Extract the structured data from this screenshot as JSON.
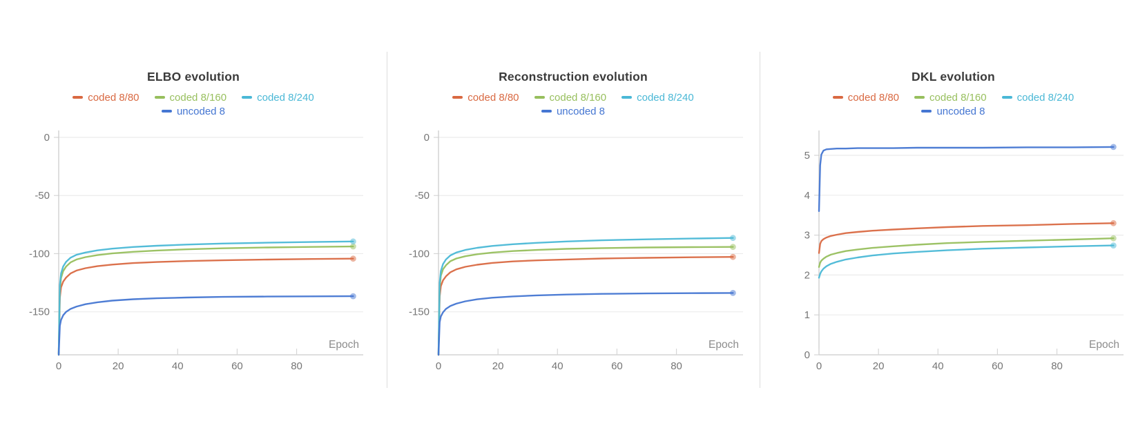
{
  "background_color": "#ffffff",
  "axis_style": {
    "axis_color": "#cccccc",
    "grid_color": "#ebebeb",
    "tick_mark_color": "#d6d6d6",
    "tick_text_color": "#757575",
    "axis_label_color": "#8c8c8c",
    "title_color": "#3b3b3b"
  },
  "chart_data": [
    {
      "type": "line",
      "title": "ELBO evolution",
      "xlabel": "Epoch",
      "ylabel": "",
      "xlim": [
        0,
        101
      ],
      "ylim": [
        -187,
        0
      ],
      "x_ticks": [
        0,
        20,
        40,
        60,
        80
      ],
      "y_ticks": [
        0,
        -50,
        -100,
        -150
      ],
      "grid": true,
      "legend_position": "top",
      "end_marker": true,
      "series": [
        {
          "name": "coded 8/80",
          "color": "#d96942",
          "points": [
            [
              0,
              -186
            ],
            [
              0.4,
              -138
            ],
            [
              0.8,
              -129
            ],
            [
              1.5,
              -124
            ],
            [
              2.5,
              -120.5
            ],
            [
              4,
              -117
            ],
            [
              6,
              -114.5
            ],
            [
              9,
              -112.5
            ],
            [
              13,
              -110.8
            ],
            [
              18,
              -109.4
            ],
            [
              25,
              -108.1
            ],
            [
              33,
              -107.2
            ],
            [
              43,
              -106.4
            ],
            [
              55,
              -105.7
            ],
            [
              70,
              -105.1
            ],
            [
              85,
              -104.6
            ],
            [
              99,
              -104.3
            ]
          ]
        },
        {
          "name": "coded 8/160",
          "color": "#97bf5d",
          "points": [
            [
              0,
              -187
            ],
            [
              0.4,
              -131
            ],
            [
              0.8,
              -121
            ],
            [
              1.5,
              -115
            ],
            [
              2.5,
              -111
            ],
            [
              4,
              -107.5
            ],
            [
              6,
              -105
            ],
            [
              9,
              -103
            ],
            [
              13,
              -101.3
            ],
            [
              18,
              -99.8
            ],
            [
              25,
              -98.4
            ],
            [
              33,
              -97.3
            ],
            [
              43,
              -96.3
            ],
            [
              55,
              -95.4
            ],
            [
              70,
              -94.7
            ],
            [
              85,
              -94.2
            ],
            [
              99,
              -93.8
            ]
          ]
        },
        {
          "name": "coded 8/240",
          "color": "#4ab8d6",
          "points": [
            [
              0,
              -186
            ],
            [
              0.4,
              -127
            ],
            [
              0.8,
              -117
            ],
            [
              1.5,
              -111
            ],
            [
              2.5,
              -107
            ],
            [
              4,
              -103.5
            ],
            [
              6,
              -101
            ],
            [
              9,
              -99
            ],
            [
              13,
              -97.2
            ],
            [
              18,
              -95.7
            ],
            [
              25,
              -94.3
            ],
            [
              33,
              -93.2
            ],
            [
              43,
              -92.2
            ],
            [
              55,
              -91.3
            ],
            [
              70,
              -90.6
            ],
            [
              85,
              -90
            ],
            [
              99,
              -89.5
            ]
          ]
        },
        {
          "name": "uncoded 8",
          "color": "#4576d2",
          "points": [
            [
              0,
              -188
            ],
            [
              0.4,
              -162
            ],
            [
              0.8,
              -157
            ],
            [
              1.5,
              -153
            ],
            [
              2.5,
              -150
            ],
            [
              4,
              -147.5
            ],
            [
              6,
              -145.5
            ],
            [
              9,
              -143.5
            ],
            [
              13,
              -141.8
            ],
            [
              18,
              -140.4
            ],
            [
              25,
              -139.2
            ],
            [
              33,
              -138.4
            ],
            [
              43,
              -137.7
            ],
            [
              55,
              -137.2
            ],
            [
              70,
              -136.9
            ],
            [
              85,
              -136.7
            ],
            [
              99,
              -136.6
            ]
          ]
        }
      ]
    },
    {
      "type": "line",
      "title": "Reconstruction evolution",
      "xlabel": "Epoch",
      "ylabel": "",
      "xlim": [
        0,
        101
      ],
      "ylim": [
        -187,
        0
      ],
      "x_ticks": [
        0,
        20,
        40,
        60,
        80
      ],
      "y_ticks": [
        0,
        -50,
        -100,
        -150
      ],
      "grid": true,
      "legend_position": "top",
      "end_marker": true,
      "series": [
        {
          "name": "coded 8/80",
          "color": "#d96942",
          "points": [
            [
              0,
              -187
            ],
            [
              0.4,
              -137
            ],
            [
              0.8,
              -128
            ],
            [
              1.5,
              -123
            ],
            [
              2.5,
              -119.5
            ],
            [
              4,
              -116
            ],
            [
              6,
              -113.5
            ],
            [
              9,
              -111.3
            ],
            [
              13,
              -109.5
            ],
            [
              18,
              -108
            ],
            [
              25,
              -106.7
            ],
            [
              33,
              -105.8
            ],
            [
              43,
              -105
            ],
            [
              55,
              -104.2
            ],
            [
              70,
              -103.6
            ],
            [
              85,
              -103.1
            ],
            [
              99,
              -102.8
            ]
          ]
        },
        {
          "name": "coded 8/160",
          "color": "#97bf5d",
          "points": [
            [
              0,
              -187
            ],
            [
              0.4,
              -129
            ],
            [
              0.8,
              -119
            ],
            [
              1.5,
              -113.5
            ],
            [
              2.5,
              -110
            ],
            [
              4,
              -106.5
            ],
            [
              6,
              -104.2
            ],
            [
              9,
              -102.2
            ],
            [
              13,
              -100.5
            ],
            [
              18,
              -99.1
            ],
            [
              25,
              -97.8
            ],
            [
              33,
              -96.8
            ],
            [
              43,
              -95.9
            ],
            [
              55,
              -95.2
            ],
            [
              70,
              -94.7
            ],
            [
              85,
              -94.4
            ],
            [
              99,
              -94.2
            ]
          ]
        },
        {
          "name": "coded 8/240",
          "color": "#4ab8d6",
          "points": [
            [
              0,
              -186
            ],
            [
              0.4,
              -125
            ],
            [
              0.8,
              -115
            ],
            [
              1.5,
              -109
            ],
            [
              2.5,
              -105
            ],
            [
              4,
              -101.5
            ],
            [
              6,
              -99
            ],
            [
              9,
              -96.8
            ],
            [
              13,
              -95
            ],
            [
              18,
              -93.4
            ],
            [
              25,
              -91.9
            ],
            [
              33,
              -90.7
            ],
            [
              43,
              -89.5
            ],
            [
              55,
              -88.5
            ],
            [
              70,
              -87.7
            ],
            [
              85,
              -87
            ],
            [
              99,
              -86.5
            ]
          ]
        },
        {
          "name": "uncoded 8",
          "color": "#4576d2",
          "points": [
            [
              0,
              -187
            ],
            [
              0.4,
              -159
            ],
            [
              0.8,
              -154
            ],
            [
              1.5,
              -150.5
            ],
            [
              2.5,
              -147.5
            ],
            [
              4,
              -145
            ],
            [
              6,
              -143
            ],
            [
              9,
              -141
            ],
            [
              13,
              -139.3
            ],
            [
              18,
              -137.9
            ],
            [
              25,
              -136.8
            ],
            [
              33,
              -135.9
            ],
            [
              43,
              -135.2
            ],
            [
              55,
              -134.6
            ],
            [
              70,
              -134.2
            ],
            [
              85,
              -134
            ],
            [
              99,
              -133.8
            ]
          ]
        }
      ]
    },
    {
      "type": "line",
      "title": "DKL evolution",
      "xlabel": "Epoch",
      "ylabel": "",
      "xlim": [
        0,
        101
      ],
      "ylim": [
        0,
        5.45
      ],
      "x_ticks": [
        0,
        20,
        40,
        60,
        80
      ],
      "y_ticks": [
        5,
        4,
        3,
        2,
        1,
        0
      ],
      "grid": true,
      "legend_position": "top",
      "end_marker": true,
      "series": [
        {
          "name": "coded 8/80",
          "color": "#d96942",
          "points": [
            [
              0,
              2.55
            ],
            [
              0.4,
              2.78
            ],
            [
              0.8,
              2.85
            ],
            [
              1.5,
              2.9
            ],
            [
              2.5,
              2.94
            ],
            [
              4,
              2.98
            ],
            [
              6,
              3.01
            ],
            [
              9,
              3.05
            ],
            [
              13,
              3.08
            ],
            [
              18,
              3.11
            ],
            [
              25,
              3.14
            ],
            [
              33,
              3.17
            ],
            [
              43,
              3.2
            ],
            [
              55,
              3.23
            ],
            [
              70,
              3.25
            ],
            [
              85,
              3.28
            ],
            [
              99,
              3.3
            ]
          ]
        },
        {
          "name": "coded 8/160",
          "color": "#97bf5d",
          "points": [
            [
              0,
              2.2
            ],
            [
              0.4,
              2.31
            ],
            [
              0.8,
              2.36
            ],
            [
              1.5,
              2.41
            ],
            [
              2.5,
              2.46
            ],
            [
              4,
              2.51
            ],
            [
              6,
              2.55
            ],
            [
              9,
              2.6
            ],
            [
              13,
              2.64
            ],
            [
              18,
              2.68
            ],
            [
              25,
              2.72
            ],
            [
              33,
              2.76
            ],
            [
              43,
              2.8
            ],
            [
              55,
              2.83
            ],
            [
              70,
              2.86
            ],
            [
              85,
              2.89
            ],
            [
              99,
              2.92
            ]
          ]
        },
        {
          "name": "coded 8/240",
          "color": "#4ab8d6",
          "points": [
            [
              0,
              1.93
            ],
            [
              0.4,
              2.03
            ],
            [
              0.8,
              2.09
            ],
            [
              1.5,
              2.16
            ],
            [
              2.5,
              2.22
            ],
            [
              4,
              2.28
            ],
            [
              6,
              2.33
            ],
            [
              9,
              2.39
            ],
            [
              13,
              2.44
            ],
            [
              18,
              2.49
            ],
            [
              25,
              2.54
            ],
            [
              33,
              2.58
            ],
            [
              43,
              2.62
            ],
            [
              55,
              2.66
            ],
            [
              70,
              2.69
            ],
            [
              85,
              2.72
            ],
            [
              99,
              2.74
            ]
          ]
        },
        {
          "name": "uncoded 8",
          "color": "#4576d2",
          "points": [
            [
              0,
              3.6
            ],
            [
              0.4,
              4.75
            ],
            [
              0.8,
              5.02
            ],
            [
              1.5,
              5.12
            ],
            [
              2.5,
              5.15
            ],
            [
              4,
              5.16
            ],
            [
              6,
              5.17
            ],
            [
              9,
              5.17
            ],
            [
              13,
              5.18
            ],
            [
              18,
              5.18
            ],
            [
              25,
              5.18
            ],
            [
              33,
              5.19
            ],
            [
              43,
              5.19
            ],
            [
              55,
              5.19
            ],
            [
              70,
              5.2
            ],
            [
              85,
              5.2
            ],
            [
              99,
              5.21
            ]
          ]
        }
      ]
    }
  ]
}
